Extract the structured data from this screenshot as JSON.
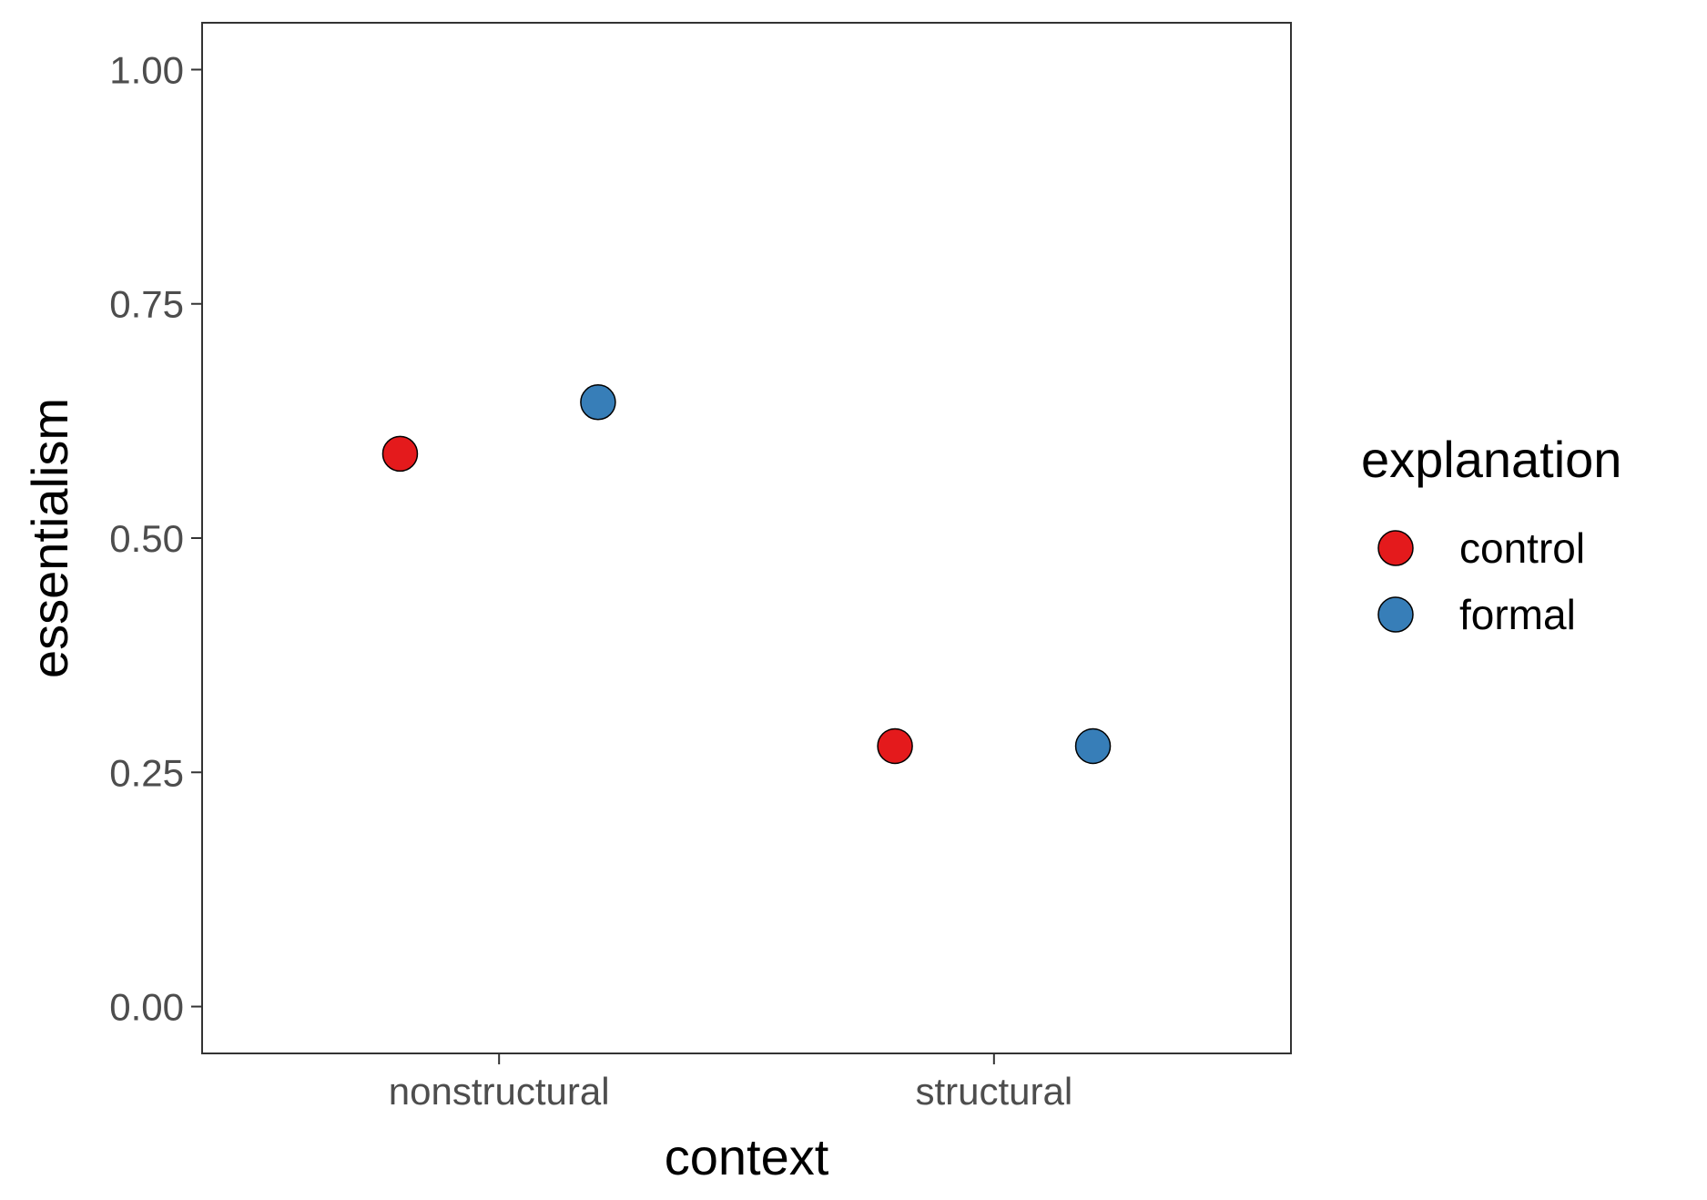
{
  "chart_data": {
    "type": "scatter",
    "title": "",
    "xlabel": "context",
    "ylabel": "essentialism",
    "categories": [
      "nonstructural",
      "structural"
    ],
    "ylim": [
      -0.05,
      1.05
    ],
    "yticks": [
      0.0,
      0.25,
      0.5,
      0.75,
      1.0
    ],
    "ytick_labels": [
      "0.00",
      "0.25",
      "0.50",
      "0.75",
      "1.00"
    ],
    "grid": false,
    "legend": {
      "title": "explanation",
      "position": "right",
      "entries": [
        "control",
        "formal"
      ]
    },
    "series": [
      {
        "name": "control",
        "color": "#e41a1c",
        "values": [
          0.59,
          0.278
        ]
      },
      {
        "name": "formal",
        "color": "#377eb8",
        "values": [
          0.645,
          0.278
        ]
      }
    ]
  }
}
